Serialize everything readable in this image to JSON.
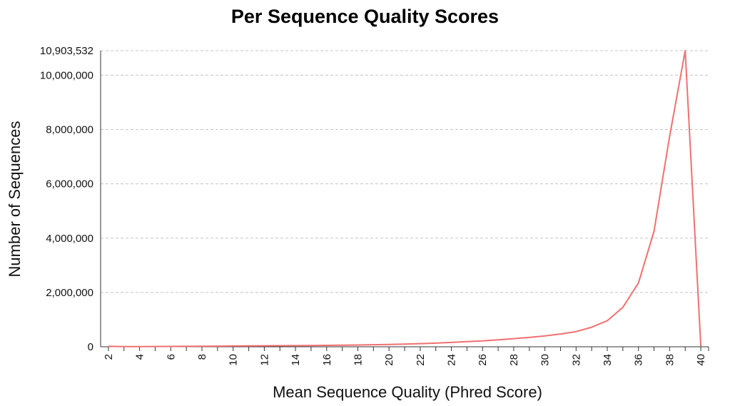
{
  "chart_data": {
    "type": "line",
    "title": "Per Sequence Quality Scores",
    "xlabel": "Mean Sequence Quality (Phred Score)",
    "ylabel": "Number of Sequences",
    "xlim": [
      2,
      40
    ],
    "ylim": [
      0,
      10903532
    ],
    "x_ticks": [
      "2",
      "4",
      "6",
      "8",
      "10",
      "12",
      "14",
      "16",
      "18",
      "20",
      "22",
      "24",
      "26",
      "28",
      "30",
      "32",
      "34",
      "36",
      "38",
      "40"
    ],
    "y_ticks": [
      {
        "value": 0,
        "label": "0"
      },
      {
        "value": 2000000,
        "label": "2,000,000"
      },
      {
        "value": 4000000,
        "label": "4,000,000"
      },
      {
        "value": 6000000,
        "label": "6,000,000"
      },
      {
        "value": 8000000,
        "label": "8,000,000"
      },
      {
        "value": 10000000,
        "label": "10,000,000"
      },
      {
        "value": 10903532,
        "label": "10,903,532"
      }
    ],
    "grid": true,
    "line_color": "#f07070",
    "series": [
      {
        "x": [
          2,
          3,
          4,
          5,
          6,
          7,
          8,
          9,
          10,
          11,
          12,
          13,
          14,
          15,
          16,
          17,
          18,
          19,
          20,
          21,
          22,
          23,
          24,
          25,
          26,
          27,
          28,
          29,
          30,
          31,
          32,
          33,
          34,
          35,
          36,
          37,
          38,
          39,
          40
        ],
        "values": [
          15000,
          5000,
          8000,
          10000,
          13000,
          17000,
          20000,
          24000,
          28000,
          32000,
          36000,
          40000,
          43000,
          47000,
          52000,
          58000,
          65000,
          75000,
          85000,
          100000,
          115000,
          135000,
          160000,
          190000,
          215000,
          255000,
          300000,
          345000,
          400000,
          470000,
          560000,
          720000,
          960000,
          1450000,
          2350000,
          4250000,
          7750000,
          10903532,
          20000
        ]
      }
    ]
  }
}
